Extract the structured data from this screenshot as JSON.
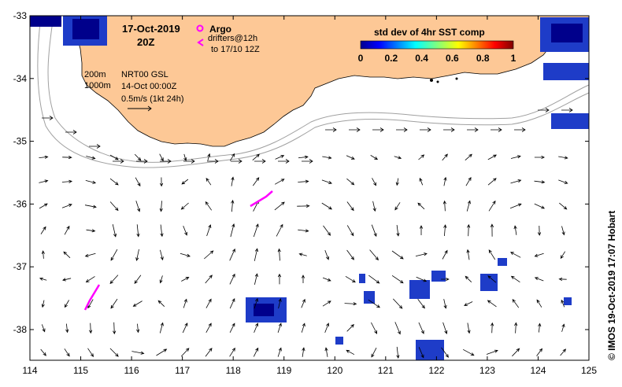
{
  "map": {
    "title_date": "17-Oct-2019",
    "title_time": "20Z",
    "x_ticks": [
      "114",
      "115",
      "116",
      "117",
      "118",
      "119",
      "120",
      "121",
      "122",
      "123",
      "124",
      "125"
    ],
    "y_ticks": [
      "-33",
      "-34",
      "-35",
      "-36",
      "-37",
      "-38"
    ],
    "contours": {
      "depth_1": "200m",
      "depth_2": "1000m"
    },
    "product": "NRT00 GSL",
    "product_time": "14-Oct 00:00Z",
    "scale_label": "0.5m/s (1kt 24h)",
    "legend": {
      "argo_label": "Argo",
      "drifters_label": "drifters@12h",
      "drifters_time": "to 17/10 12Z",
      "argo_color": "#ff00ff",
      "drifter_color": "#ff00ff"
    },
    "colorbar": {
      "title": "std dev of 4hr SST comp",
      "ticks": [
        "0",
        "0.2",
        "0.4",
        "0.6",
        "0.8",
        "1"
      ]
    },
    "credit": "© IMOS 19-Oct-2019 17:07 Hobart",
    "colors": {
      "land": "#fdc896",
      "frame": "#000000",
      "sst_dark": "#00008b",
      "sst_mid": "#1e3cc8",
      "sst_light": "#3c78ff"
    }
  }
}
